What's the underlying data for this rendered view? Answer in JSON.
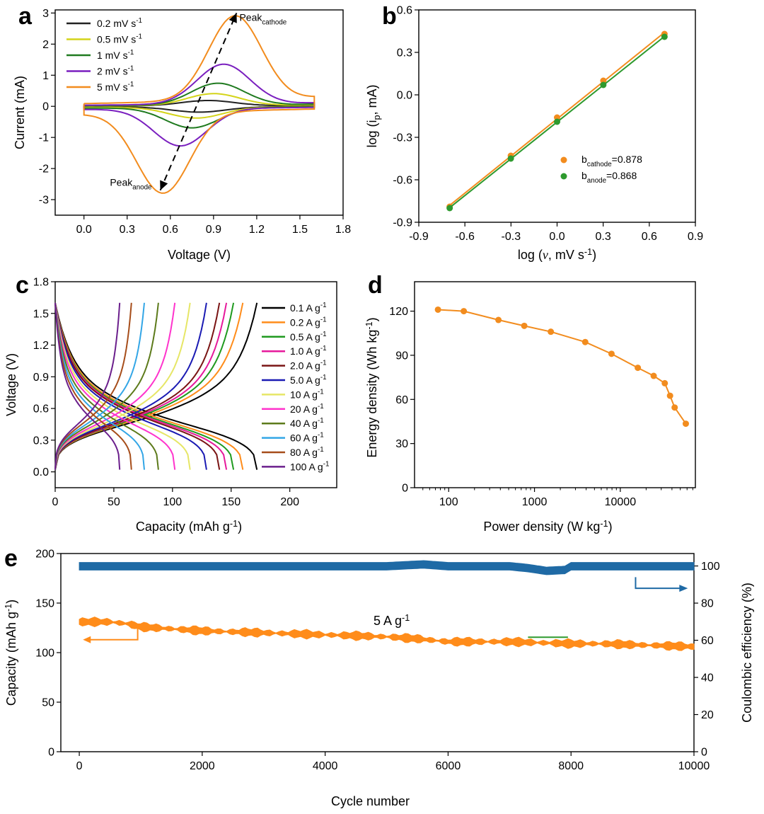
{
  "chart_data": [
    {
      "panel": "a",
      "type": "line",
      "xlabel": "Voltage (V)",
      "ylabel": "Current (mA)",
      "xlim": [
        -0.2,
        1.8
      ],
      "ylim": [
        -3.5,
        3.1
      ],
      "xticks": [
        "0.0",
        "0.3",
        "0.6",
        "0.9",
        "1.2",
        "1.5",
        "1.8"
      ],
      "yticks": [
        "-3",
        "-2",
        "-1",
        "0",
        "1",
        "2",
        "3"
      ],
      "legend_position": "top-left",
      "series": [
        {
          "name": "0.2 mV s",
          "unit_sup": "-1",
          "color": "#222222",
          "peak_c": [
            0.86,
            0.17
          ],
          "peak_a": [
            0.8,
            -0.17
          ],
          "edge": 0.05
        },
        {
          "name": "0.5 mV s",
          "unit_sup": "-1",
          "color": "#d4d41a",
          "peak_c": [
            0.9,
            0.38
          ],
          "peak_a": [
            0.78,
            -0.35
          ],
          "edge": 0.08
        },
        {
          "name": "1 mV s",
          "unit_sup": "-1",
          "color": "#1f7a1f",
          "peak_c": [
            0.93,
            0.7
          ],
          "peak_a": [
            0.75,
            -0.65
          ],
          "edge": 0.12
        },
        {
          "name": "2 mV s",
          "unit_sup": "-1",
          "color": "#7a1fbf",
          "peak_c": [
            0.97,
            1.28
          ],
          "peak_a": [
            0.67,
            -1.2
          ],
          "edge": 0.2
        },
        {
          "name": "5 mV s",
          "unit_sup": "-1",
          "color": "#f28c1e",
          "peak_c": [
            1.05,
            2.72
          ],
          "peak_a": [
            0.55,
            -2.6
          ],
          "edge": 0.5
        }
      ],
      "annotations": [
        {
          "base": "Peak",
          "sub": "cathode",
          "at": [
            1.08,
            2.75
          ]
        },
        {
          "base": "Peak",
          "sub": "anode",
          "at": [
            0.18,
            -2.55
          ]
        }
      ],
      "arrow": {
        "from": [
          0.53,
          -2.7
        ],
        "to": [
          1.06,
          3.0
        ]
      }
    },
    {
      "panel": "b",
      "type": "scatter",
      "xlabel_pre": "log (",
      "xlabel_var": "ν",
      "xlabel_post": ", mV s",
      "xlabel_sup": "-1",
      "xlabel_end": ")",
      "ylabel_pre": "log (i",
      "ylabel_sub": "p",
      "ylabel_post": ", mA)",
      "xlim": [
        -0.9,
        0.9
      ],
      "ylim": [
        -0.9,
        0.6
      ],
      "xticks": [
        "-0.9",
        "-0.6",
        "-0.3",
        "0.0",
        "0.3",
        "0.6",
        "0.9"
      ],
      "yticks": [
        "-0.9",
        "-0.6",
        "-0.3",
        "0.0",
        "0.3",
        "0.6"
      ],
      "legend_position": "center-right",
      "x": [
        -0.699,
        -0.301,
        0.0,
        0.301,
        0.699
      ],
      "series": [
        {
          "name": "b",
          "sub": "cathode",
          "value": "=0.878",
          "color": "#f28c1e",
          "values": [
            -0.79,
            -0.43,
            -0.16,
            0.1,
            0.43
          ]
        },
        {
          "name": "b",
          "sub": "anode",
          "value": "=0.868",
          "color": "#2e9a2e",
          "values": [
            -0.8,
            -0.45,
            -0.19,
            0.07,
            0.41
          ]
        }
      ]
    },
    {
      "panel": "c",
      "type": "line",
      "xlabel": "Capacity (mAh g",
      "xlabel_sup": "-1",
      "xlabel_end": ")",
      "ylabel": "Voltage (V)",
      "xlim": [
        0,
        240
      ],
      "ylim": [
        -0.15,
        1.8
      ],
      "xticks": [
        "0",
        "50",
        "100",
        "150",
        "200"
      ],
      "yticks": [
        "0.0",
        "0.3",
        "0.6",
        "0.9",
        "1.2",
        "1.5",
        "1.8"
      ],
      "legend_position": "right",
      "series": [
        {
          "name": "0.1 A g",
          "unit_sup": "-1",
          "color": "#000000",
          "capacity": 172
        },
        {
          "name": "0.2 A g",
          "unit_sup": "-1",
          "color": "#ff8c1a",
          "capacity": 160
        },
        {
          "name": "0.5 A g",
          "unit_sup": "-1",
          "color": "#1f9a1f",
          "capacity": 152
        },
        {
          "name": "1.0 A g",
          "unit_sup": "-1",
          "color": "#e6199b",
          "capacity": 146
        },
        {
          "name": "2.0 A g",
          "unit_sup": "-1",
          "color": "#7a1414",
          "capacity": 140
        },
        {
          "name": "5.0 A g",
          "unit_sup": "-1",
          "color": "#1a1ab3",
          "capacity": 129
        },
        {
          "name": "10 A g",
          "unit_sup": "-1",
          "color": "#e6e666",
          "capacity": 115
        },
        {
          "name": "20 A g",
          "unit_sup": "-1",
          "color": "#ff33cc",
          "capacity": 102
        },
        {
          "name": "40 A g",
          "unit_sup": "-1",
          "color": "#5c7a1a",
          "capacity": 88
        },
        {
          "name": "60 A g",
          "unit_sup": "-1",
          "color": "#33a6e6",
          "capacity": 76
        },
        {
          "name": "80 A g",
          "unit_sup": "-1",
          "color": "#a64d1a",
          "capacity": 65
        },
        {
          "name": "100 A g",
          "unit_sup": "-1",
          "color": "#6b1f8c",
          "capacity": 55
        }
      ]
    },
    {
      "panel": "d",
      "type": "line",
      "xscale": "log",
      "xlabel": "Power density (W kg",
      "xlabel_sup": "-1",
      "xlabel_end": ")",
      "ylabel": "Energy density (Wh kg",
      "ylabel_sup": "-1",
      "ylabel_end": ")",
      "xlim": [
        40,
        75000
      ],
      "ylim": [
        0,
        140
      ],
      "xticks": [
        "100",
        "1000",
        "10000"
      ],
      "yticks": [
        "0",
        "30",
        "60",
        "90",
        "120"
      ],
      "color": "#f28c1e",
      "x": [
        75,
        150,
        380,
        760,
        1550,
        3900,
        7900,
        16000,
        24500,
        33000,
        38000,
        43000,
        58000
      ],
      "values": [
        121,
        120,
        114,
        110,
        106,
        99,
        91,
        81.5,
        76,
        71,
        62.5,
        54.5,
        43.5
      ]
    },
    {
      "panel": "e",
      "type": "scatter",
      "xlabel": "Cycle number",
      "ylabel": "Capacity (mAh g",
      "ylabel_sup": "-1",
      "ylabel_end": ")",
      "y2label": "Coulombic efficiency (%)",
      "xlim": [
        -300,
        10000
      ],
      "ylim": [
        0,
        200
      ],
      "y2lim": [
        0,
        106.7
      ],
      "xticks": [
        "0",
        "2000",
        "4000",
        "6000",
        "8000",
        "10000"
      ],
      "yticks": [
        "0",
        "50",
        "100",
        "150",
        "200"
      ],
      "y2ticks": [
        "0",
        "20",
        "40",
        "60",
        "80",
        "100"
      ],
      "annotation": {
        "text": "5 A g",
        "sup": "-1"
      },
      "series": [
        {
          "name": "Capacity",
          "axis": "left",
          "color": "#ff8c1a",
          "x": [
            0,
            200,
            500,
            800,
            1000,
            1500,
            2000,
            2500,
            3000,
            3500,
            4000,
            4500,
            5000,
            5500,
            6000,
            6500,
            7000,
            7500,
            8000,
            8500,
            9000,
            9500,
            10000
          ],
          "values": [
            131,
            131,
            131,
            129,
            126,
            124,
            122,
            121,
            120,
            119,
            118,
            117,
            116,
            114,
            111,
            111,
            111,
            110,
            109,
            109,
            108,
            107,
            106
          ]
        },
        {
          "name": "Coulombic efficiency",
          "axis": "right",
          "color": "#1f6aa5",
          "x": [
            0,
            1000,
            2000,
            3000,
            4000,
            5000,
            5600,
            6000,
            7000,
            7300,
            7600,
            7900,
            8000,
            9000,
            10000
          ],
          "values": [
            100,
            100,
            100,
            100,
            100,
            100,
            101,
            100,
            100,
            99,
            97.5,
            98,
            100,
            100,
            100
          ]
        }
      ]
    }
  ]
}
